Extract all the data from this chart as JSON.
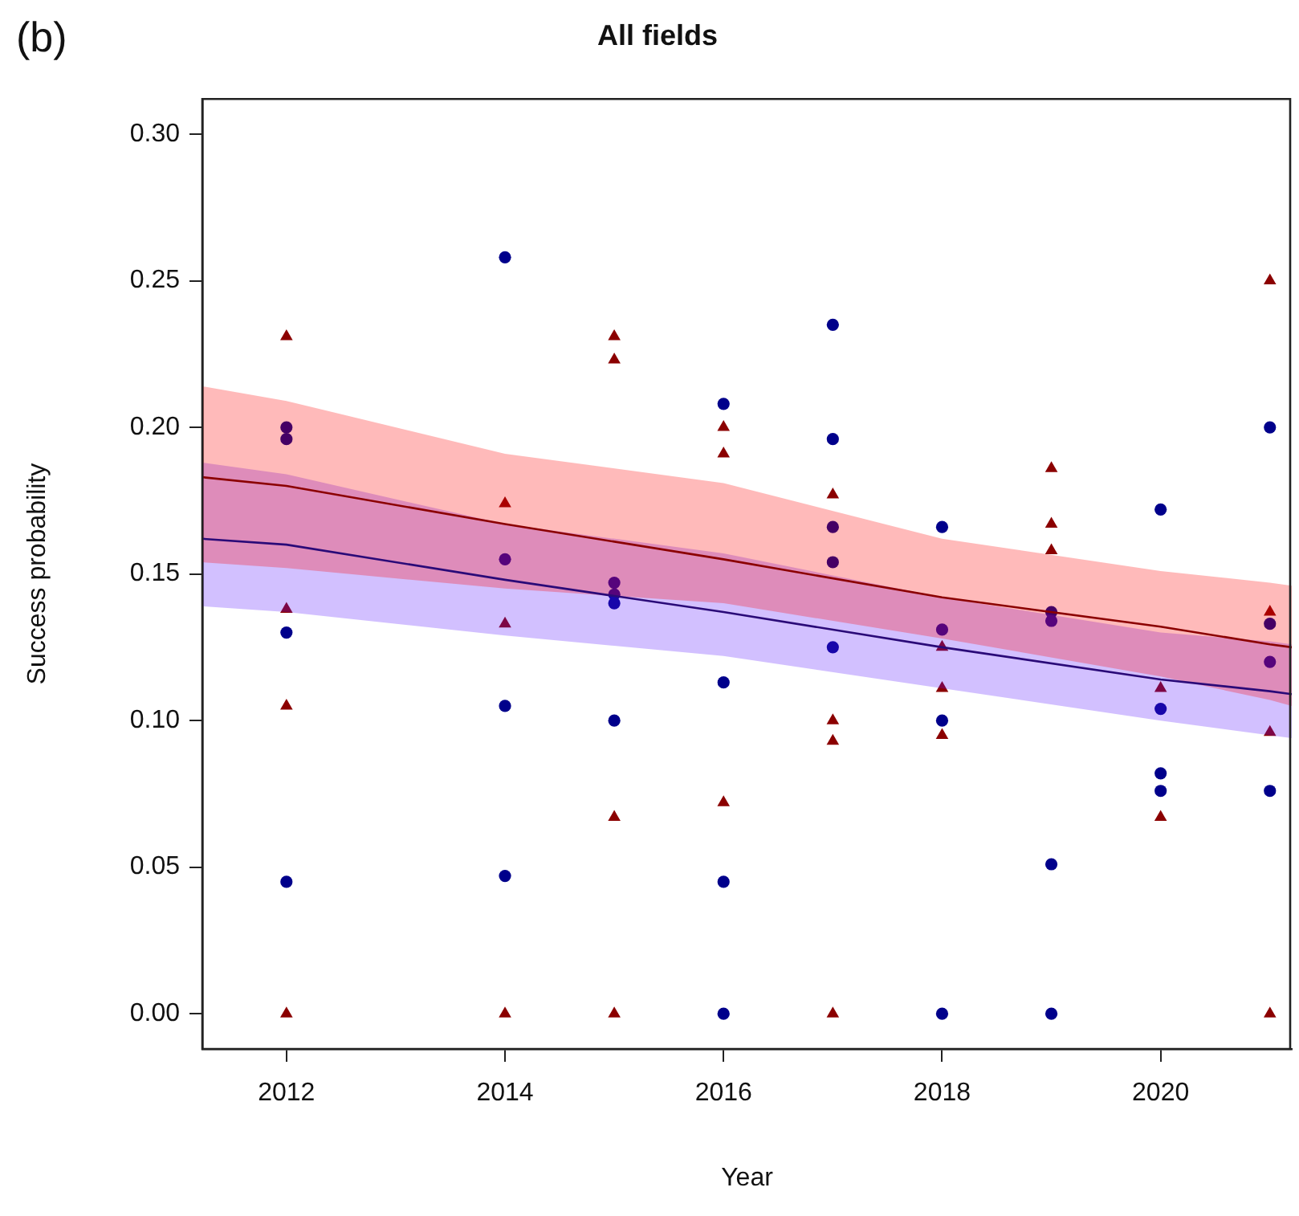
{
  "chart_data": {
    "type": "scatter",
    "title": "All fields",
    "xlabel": "Year",
    "ylabel": "Success probability",
    "annotations": [
      "(b)"
    ],
    "xlim": [
      2011.23,
      2021.2
    ],
    "xticks": [
      2012,
      2014,
      2016,
      2018,
      2020
    ],
    "ylim": [
      -0.012,
      0.312
    ],
    "yticks": [
      {
        "value": 0,
        "label": "0.00"
      },
      {
        "value": 0.05,
        "label": "0.05"
      },
      {
        "value": 0.1,
        "label": "0.10"
      },
      {
        "value": 0.15,
        "label": "0.15"
      },
      {
        "value": 0.2,
        "label": "0.20"
      },
      {
        "value": 0.25,
        "label": "0.25"
      },
      {
        "value": 0.3,
        "label": "0.30"
      }
    ],
    "grid": false,
    "legend": false,
    "series": [
      {
        "marker": "circle",
        "color": "#00008b",
        "x": [
          2012,
          2012,
          2012,
          2012,
          2014,
          2014,
          2014,
          2014,
          2015,
          2015,
          2015,
          2015,
          2016,
          2016,
          2016,
          2016,
          2017,
          2017,
          2017,
          2017,
          2017,
          2018,
          2018,
          2018,
          2018,
          2019,
          2019,
          2019,
          2019,
          2020,
          2020,
          2020,
          2020,
          2021,
          2021,
          2021,
          2021
        ],
        "values": [
          0.2,
          0.196,
          0.13,
          0.045,
          0.258,
          0.155,
          0.105,
          0.047,
          0.147,
          0.143,
          0.14,
          0.1,
          0.208,
          0.113,
          0.045,
          0,
          0.235,
          0.196,
          0.166,
          0.154,
          0.125,
          0.166,
          0.131,
          0.1,
          0,
          0.137,
          0.134,
          0.051,
          0,
          0.172,
          0.104,
          0.082,
          0.076,
          0.2,
          0.133,
          0.12,
          0.076
        ]
      },
      {
        "marker": "triangle",
        "color": "#8b0000",
        "x": [
          2012,
          2012,
          2012,
          2012,
          2014,
          2014,
          2014,
          2015,
          2015,
          2015,
          2015,
          2016,
          2016,
          2016,
          2017,
          2017,
          2017,
          2017,
          2018,
          2018,
          2018,
          2019,
          2019,
          2019,
          2020,
          2020,
          2021,
          2021,
          2021,
          2021
        ],
        "values": [
          0.231,
          0.138,
          0.105,
          0,
          0.174,
          0.133,
          0,
          0.231,
          0.223,
          0.067,
          0,
          0.2,
          0.191,
          0.072,
          0.177,
          0.1,
          0.093,
          0,
          0.125,
          0.111,
          0.095,
          0.186,
          0.167,
          0.158,
          0.111,
          0.067,
          0.25,
          0.137,
          0.096,
          0
        ]
      },
      {
        "type": "line",
        "marker": "none",
        "line_style": "solid",
        "color": "#8b0000",
        "x": [
          2011.23,
          2012,
          2014,
          2016,
          2018,
          2020,
          2021,
          2021.2
        ],
        "values": [
          0.183,
          0.18,
          0.167,
          0.155,
          0.142,
          0.132,
          0.126,
          0.125
        ],
        "lower": [
          0.154,
          0.152,
          0.145,
          0.14,
          0.128,
          0.115,
          0.107,
          0.105
        ],
        "upper": [
          0.214,
          0.209,
          0.191,
          0.181,
          0.162,
          0.151,
          0.147,
          0.146
        ]
      },
      {
        "type": "line",
        "marker": "none",
        "line_style": "solid",
        "color": "#2a0a78",
        "x": [
          2011.23,
          2012,
          2014,
          2016,
          2018,
          2020,
          2021,
          2021.2
        ],
        "values": [
          0.162,
          0.16,
          0.148,
          0.137,
          0.125,
          0.114,
          0.11,
          0.109
        ],
        "lower": [
          0.139,
          0.137,
          0.129,
          0.122,
          0.111,
          0.1,
          0.095,
          0.094
        ],
        "upper": [
          0.188,
          0.184,
          0.167,
          0.157,
          0.142,
          0.13,
          0.127,
          0.126
        ]
      }
    ]
  }
}
